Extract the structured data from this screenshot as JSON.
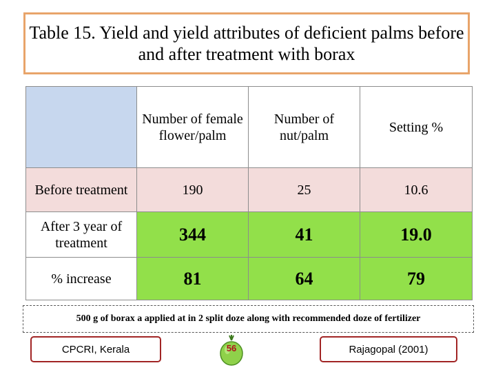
{
  "title": "Table 15. Yield and yield attributes of deficient palms before and after treatment with borax",
  "table": {
    "headers": [
      "",
      "Number of female flower/palm",
      "Number of nut/palm",
      "Setting %"
    ],
    "rows": [
      {
        "label": "Before treatment",
        "values": [
          "190",
          "25",
          "10.6"
        ]
      },
      {
        "label": "After 3 year of treatment",
        "values": [
          "344",
          "41",
          "19.0"
        ]
      },
      {
        "label": "% increase",
        "values": [
          "81",
          "64",
          "79"
        ]
      }
    ]
  },
  "note": "500 g of borax a applied at in 2 split doze along with recommended doze of fertilizer",
  "footer": {
    "left": "CPCRI, Kerala",
    "page_number": "56",
    "right": "Rajagopal (2001)"
  },
  "colors": {
    "title_border": "#e8a46a",
    "header_blank": "#c7d7ee",
    "row_before": "#f3dcdb",
    "row_highlight": "#92e04a",
    "footer_border": "#a12424"
  }
}
